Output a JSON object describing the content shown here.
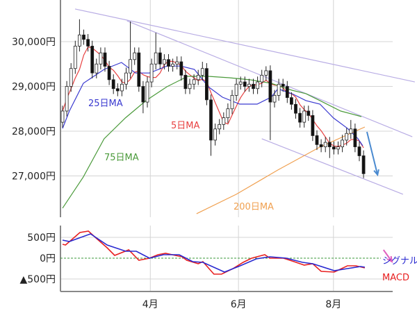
{
  "chart_data": [
    {
      "type": "candlestick",
      "panel": "price",
      "y_ticks": [
        {
          "value": 30000,
          "label": "30,000円"
        },
        {
          "value": 29000,
          "label": "29,000円"
        },
        {
          "value": 28000,
          "label": "28,000円"
        },
        {
          "value": 27000,
          "label": "27,000円"
        }
      ],
      "x_ticks": [
        {
          "day_index": 20.7,
          "label": "4月"
        },
        {
          "day_index": 41.5,
          "label": "6月"
        },
        {
          "day_index": 63.9,
          "label": "8月"
        }
      ],
      "grid": true,
      "candles_ohlc": [
        [
          28200,
          28570,
          28080,
          28450
        ],
        [
          28450,
          29120,
          28330,
          29000
        ],
        [
          29000,
          29520,
          28880,
          29400
        ],
        [
          29400,
          30020,
          29280,
          29900
        ],
        [
          29900,
          30500,
          29780,
          30150
        ],
        [
          30150,
          30270,
          29930,
          30050
        ],
        [
          30050,
          30170,
          29780,
          29900
        ],
        [
          29900,
          30020,
          29180,
          29300
        ],
        [
          29300,
          29620,
          29180,
          29500
        ],
        [
          29500,
          29870,
          29380,
          29750
        ],
        [
          29750,
          29870,
          29330,
          29450
        ],
        [
          29450,
          29570,
          29030,
          29150
        ],
        [
          29150,
          29270,
          28830,
          28950
        ],
        [
          28950,
          29070,
          28780,
          28900
        ],
        [
          28900,
          29170,
          28780,
          29050
        ],
        [
          29050,
          29420,
          28930,
          29300
        ],
        [
          29300,
          30450,
          29180,
          29600
        ],
        [
          29600,
          29870,
          29480,
          29750
        ],
        [
          29750,
          29870,
          28880,
          29000
        ],
        [
          29000,
          29120,
          28400,
          28650
        ],
        [
          28650,
          29220,
          28530,
          29100
        ],
        [
          29100,
          29620,
          28980,
          29500
        ],
        [
          29500,
          30200,
          29380,
          29750
        ],
        [
          29750,
          29870,
          29380,
          29500
        ],
        [
          29500,
          29720,
          29380,
          29600
        ],
        [
          29600,
          29720,
          29330,
          29450
        ],
        [
          29450,
          29620,
          29330,
          29500
        ],
        [
          29500,
          29670,
          29380,
          29550
        ],
        [
          29550,
          29670,
          29130,
          29250
        ],
        [
          29250,
          29370,
          28830,
          28950
        ],
        [
          28950,
          29170,
          28830,
          29050
        ],
        [
          29050,
          29270,
          28930,
          29150
        ],
        [
          29150,
          29370,
          29030,
          29250
        ],
        [
          29250,
          29550,
          29130,
          29400
        ],
        [
          29400,
          29520,
          28580,
          28700
        ],
        [
          28700,
          28820,
          27450,
          27800
        ],
        [
          27800,
          28170,
          27680,
          28050
        ],
        [
          28050,
          28270,
          27930,
          28150
        ],
        [
          28150,
          28420,
          28030,
          28300
        ],
        [
          28300,
          28620,
          28180,
          28500
        ],
        [
          28500,
          28920,
          28380,
          28800
        ],
        [
          28800,
          29170,
          28680,
          29050
        ],
        [
          29050,
          29220,
          28930,
          29100
        ],
        [
          29100,
          29220,
          28880,
          29000
        ],
        [
          29000,
          29170,
          28880,
          29050
        ],
        [
          29050,
          29170,
          28830,
          28950
        ],
        [
          28950,
          29220,
          28830,
          29100
        ],
        [
          29100,
          29370,
          28980,
          29250
        ],
        [
          29250,
          29450,
          29130,
          29350
        ],
        [
          29350,
          29470,
          27800,
          28650
        ],
        [
          28650,
          28920,
          28530,
          28800
        ],
        [
          28800,
          29170,
          28680,
          29050
        ],
        [
          29050,
          29170,
          28880,
          29000
        ],
        [
          29000,
          29120,
          28630,
          28750
        ],
        [
          28750,
          28870,
          28480,
          28600
        ],
        [
          28600,
          28720,
          28280,
          28400
        ],
        [
          28400,
          28520,
          28080,
          28200
        ],
        [
          28200,
          28570,
          28080,
          28450
        ],
        [
          28450,
          28570,
          28230,
          28350
        ],
        [
          28350,
          28470,
          27780,
          27900
        ],
        [
          27900,
          28020,
          27580,
          27700
        ],
        [
          27700,
          27820,
          27530,
          27650
        ],
        [
          27650,
          27870,
          27530,
          27750
        ],
        [
          27750,
          27870,
          27400,
          27650
        ],
        [
          27650,
          27770,
          27480,
          27600
        ],
        [
          27600,
          27770,
          27480,
          27650
        ],
        [
          27650,
          27920,
          27530,
          27800
        ],
        [
          27800,
          28070,
          27680,
          27950
        ],
        [
          27950,
          28250,
          27830,
          28050
        ],
        [
          28050,
          28170,
          27530,
          27650
        ],
        [
          27650,
          27770,
          27330,
          27450
        ],
        [
          27450,
          27570,
          26950,
          27050
        ]
      ],
      "moving_averages": [
        {
          "name": "5日MA",
          "color": "#e84040",
          "window": 5
        },
        {
          "name": "25日MA",
          "color": "#3a3ad0",
          "points": [
            [
              0,
              28060
            ],
            [
              1.6,
              28450
            ],
            [
              4.9,
              29070
            ],
            [
              9.8,
              29380
            ],
            [
              13.9,
              29535
            ],
            [
              17.2,
              29300
            ],
            [
              20.5,
              29300
            ],
            [
              24.6,
              29455
            ],
            [
              27.9,
              29455
            ],
            [
              31.1,
              29380
            ],
            [
              34.4,
              28993
            ],
            [
              37.7,
              28760
            ],
            [
              41.8,
              28605
            ],
            [
              45.9,
              28605
            ],
            [
              49.2,
              28760
            ],
            [
              50.8,
              28945
            ],
            [
              54.1,
              28838
            ],
            [
              57.4,
              28683
            ],
            [
              60.7,
              28605
            ],
            [
              63.9,
              28295
            ],
            [
              67.2,
              28063
            ],
            [
              69.7,
              27830
            ],
            [
              70.8,
              27675
            ]
          ]
        },
        {
          "name": "75日MA",
          "color": "#4a9a3a",
          "points": [
            [
              0,
              26280
            ],
            [
              4.9,
              26978
            ],
            [
              9.8,
              27830
            ],
            [
              14.8,
              28295
            ],
            [
              19.7,
              28683
            ],
            [
              24.6,
              28993
            ],
            [
              29.5,
              29225
            ],
            [
              34.4,
              29225
            ],
            [
              39.3,
              29194
            ],
            [
              44.3,
              29148
            ],
            [
              49.2,
              29070
            ],
            [
              54.1,
              28915
            ],
            [
              57.4,
              28838
            ],
            [
              60.7,
              28683
            ],
            [
              65.6,
              28450
            ],
            [
              70.5,
              28326
            ]
          ]
        },
        {
          "name": "200日MA",
          "color": "#f0a050",
          "points": [
            [
              31.6,
              26156
            ],
            [
              41,
              26590
            ],
            [
              50.8,
              27133
            ],
            [
              60.7,
              27645
            ],
            [
              71.3,
              28093
            ]
          ]
        }
      ],
      "trendlines": [
        {
          "color": "#b8ace4",
          "from": [
            2.95,
            30730
          ],
          "to": [
            83.1,
            29100
          ]
        },
        {
          "color": "#b8ace4",
          "from": [
            15.2,
            30465
          ],
          "to": [
            82.5,
            27875
          ]
        },
        {
          "color": "#b8ace4",
          "from": [
            47,
            27830
          ],
          "to": [
            80.3,
            26590
          ]
        }
      ],
      "arrow": {
        "color": "#4a8ad0",
        "from": [
          71.8,
          27985
        ],
        "to": [
          74.3,
          27025
        ]
      }
    },
    {
      "type": "line",
      "panel": "macd",
      "y_ticks": [
        {
          "value": 500,
          "label": "500円",
          "color": "#222222"
        },
        {
          "value": 0,
          "label": "0円",
          "color": "#3a8a3a"
        },
        {
          "value": -500,
          "label": "▲500円",
          "color": "#222222"
        }
      ],
      "zero_line_color": "#3a9a3a",
      "series": [
        {
          "name": "MACD",
          "color": "#e82020",
          "points": [
            [
              0,
              333
            ],
            [
              0.7,
              317
            ],
            [
              4.1,
              617
            ],
            [
              6.1,
              650
            ],
            [
              7.9,
              483
            ],
            [
              10.5,
              250
            ],
            [
              12.3,
              67
            ],
            [
              15.6,
              200
            ],
            [
              18,
              -50
            ],
            [
              20.5,
              0
            ],
            [
              22.5,
              83
            ],
            [
              24.3,
              117
            ],
            [
              28.2,
              33
            ],
            [
              29.3,
              -50
            ],
            [
              32,
              -133
            ],
            [
              33.1,
              -83
            ],
            [
              35.7,
              -383
            ],
            [
              37.5,
              -383
            ],
            [
              40.2,
              -250
            ],
            [
              42.6,
              -100
            ],
            [
              44.6,
              0
            ],
            [
              47.7,
              83
            ],
            [
              48.9,
              0
            ],
            [
              52.1,
              0
            ],
            [
              54.6,
              -83
            ],
            [
              57,
              -167
            ],
            [
              59,
              -133
            ],
            [
              61,
              -317
            ],
            [
              64.1,
              -333
            ],
            [
              67.2,
              -183
            ],
            [
              69.2,
              -183
            ],
            [
              71.3,
              -233
            ]
          ]
        },
        {
          "name": "シグナル",
          "color": "#2828d0",
          "points": [
            [
              0,
              433
            ],
            [
              1.6,
              400
            ],
            [
              6.6,
              583
            ],
            [
              10.5,
              317
            ],
            [
              14.9,
              167
            ],
            [
              17.4,
              167
            ],
            [
              20.5,
              0
            ],
            [
              23.8,
              83
            ],
            [
              27.5,
              83
            ],
            [
              30.7,
              -83
            ],
            [
              33.1,
              -100
            ],
            [
              38.2,
              -333
            ],
            [
              41.9,
              -183
            ],
            [
              45.7,
              -17
            ],
            [
              48.9,
              33
            ],
            [
              52.8,
              0
            ],
            [
              56.6,
              -100
            ],
            [
              59,
              -133
            ],
            [
              64.1,
              -300
            ],
            [
              67.2,
              -250
            ],
            [
              70.3,
              -200
            ],
            [
              71.3,
              -217
            ]
          ]
        }
      ],
      "arrow": {
        "color": "#e060c0",
        "from": [
          75.7,
          200
        ],
        "to": [
          77.7,
          -83
        ]
      }
    }
  ]
}
